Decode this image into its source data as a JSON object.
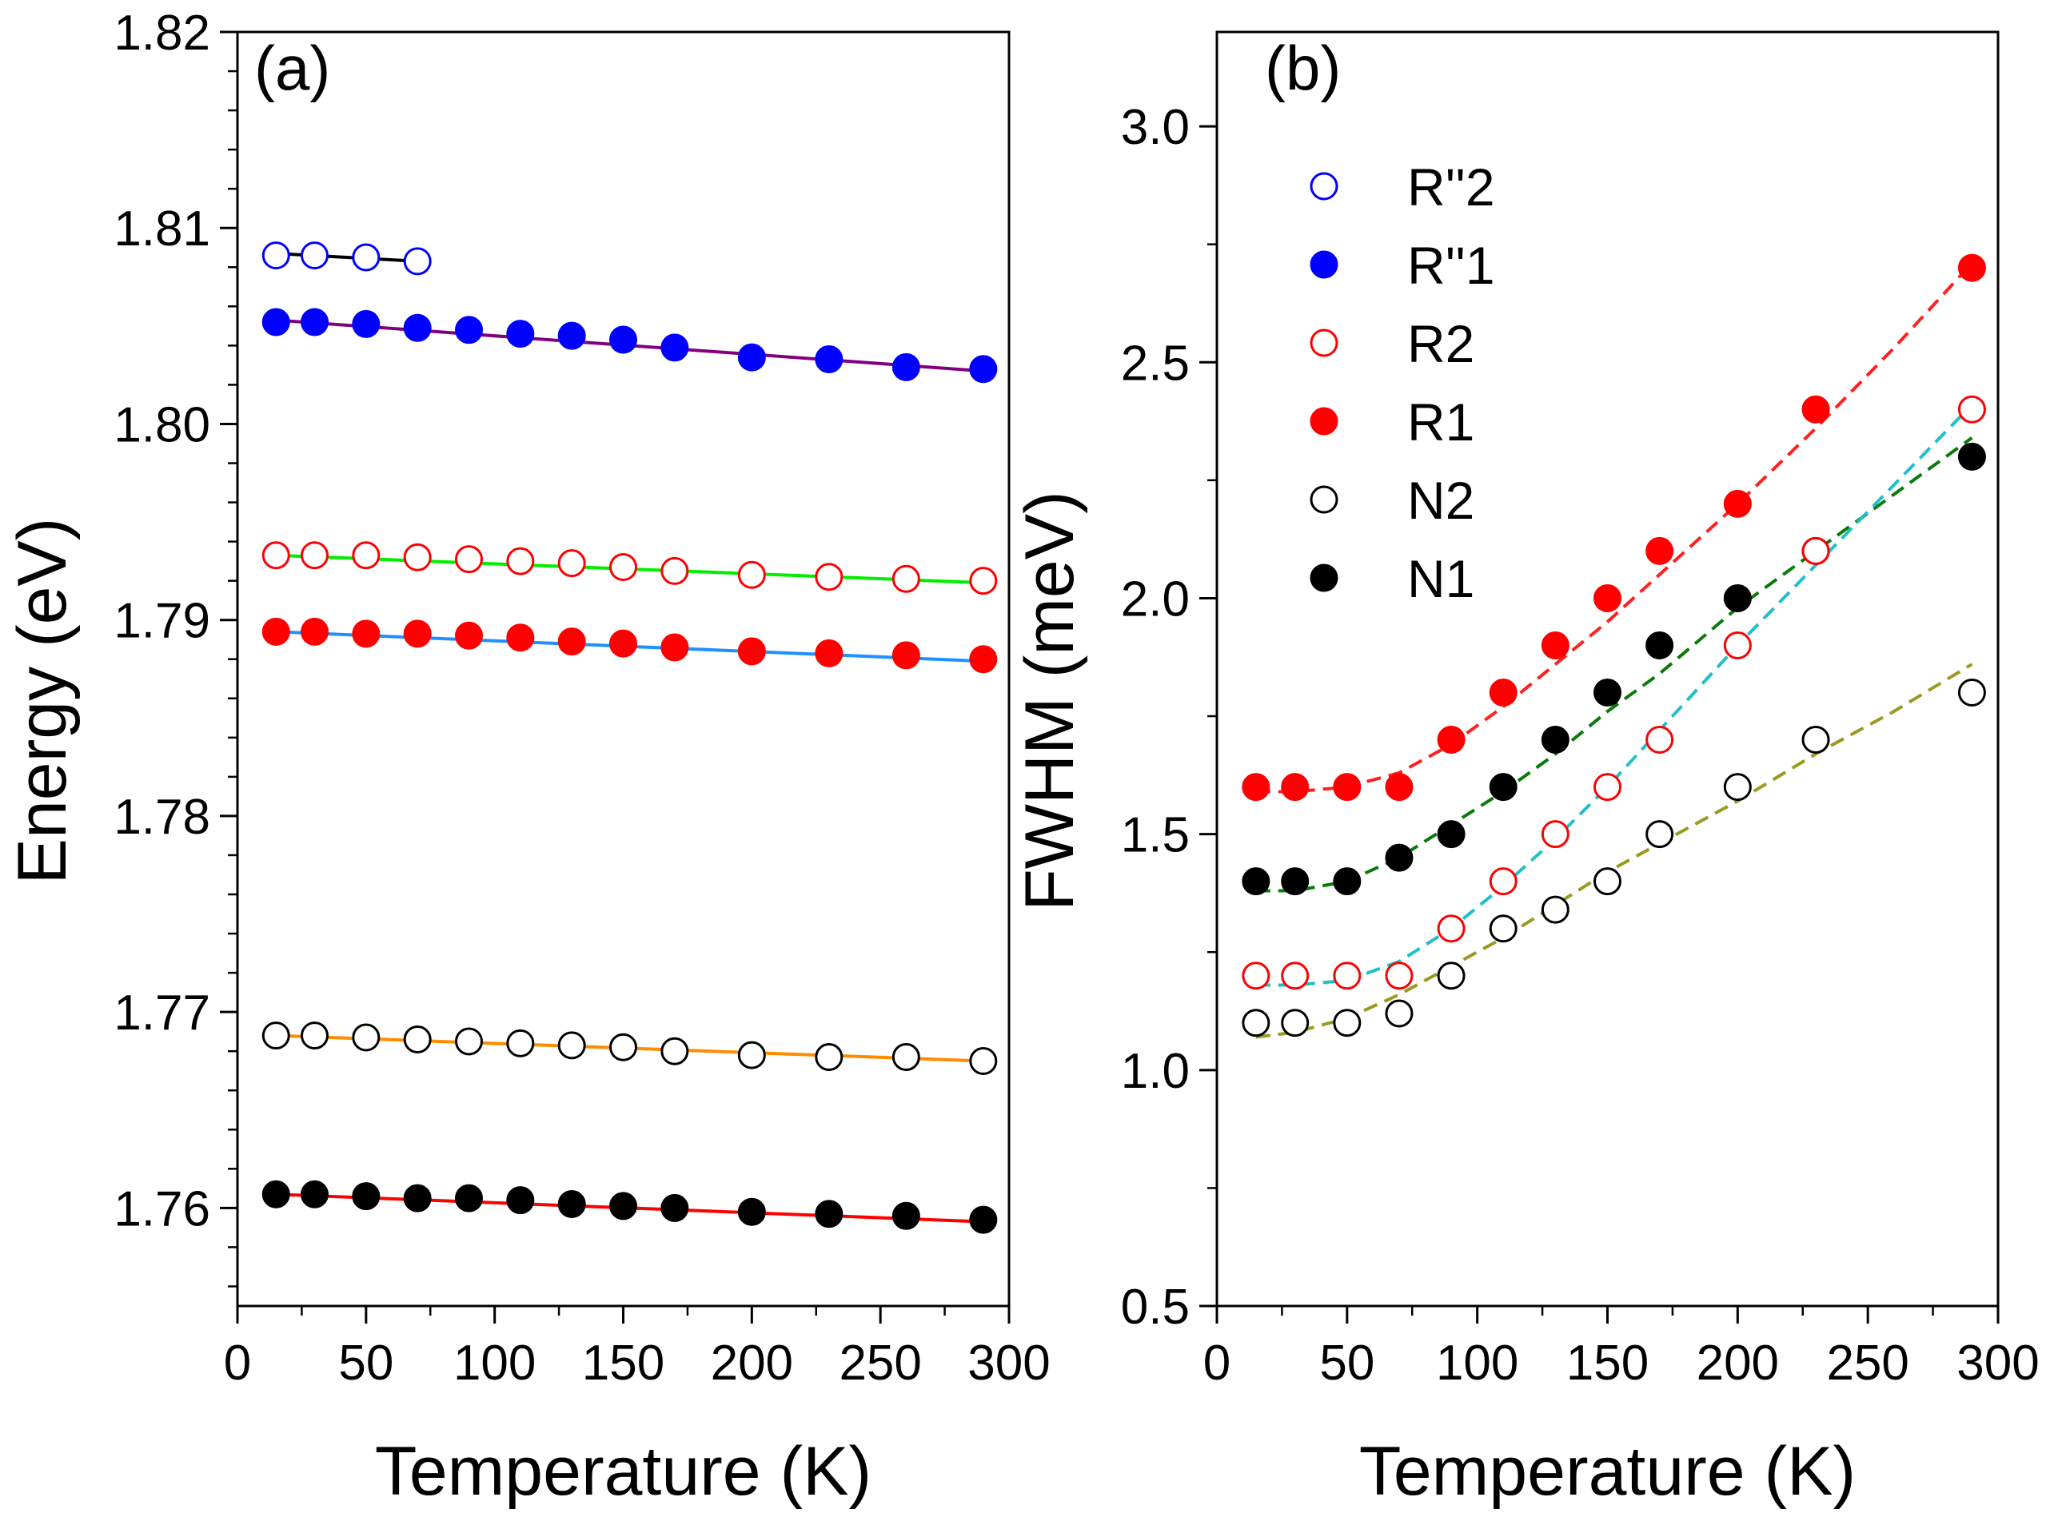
{
  "chart_data": [
    {
      "type": "scatter",
      "panel_label": "(a)",
      "xlabel": "Temperature (K)",
      "ylabel": "Energy (eV)",
      "xlim": [
        0,
        300
      ],
      "ylim": [
        1.755,
        1.82
      ],
      "x_ticks": [
        "0",
        "50",
        "100",
        "150",
        "200",
        "250",
        "300"
      ],
      "y_ticks": [
        "1.76",
        "1.77",
        "1.78",
        "1.79",
        "1.80",
        "1.81",
        "1.82"
      ],
      "series": [
        {
          "name": "R''2",
          "filled": false,
          "color": "#0000ff",
          "fit_color": "#000000",
          "x": [
            15,
            30,
            50,
            70
          ],
          "y": [
            1.8086,
            1.8086,
            1.8085,
            1.8083
          ],
          "fit_x": [
            15,
            70
          ],
          "fit_y": [
            1.8087,
            1.8083
          ]
        },
        {
          "name": "R''1",
          "filled": true,
          "color": "#0000ff",
          "fit_color": "#800080",
          "x": [
            15,
            30,
            50,
            70,
            90,
            110,
            130,
            150,
            170,
            200,
            230,
            260,
            290
          ],
          "y": [
            1.8052,
            1.8052,
            1.8051,
            1.8049,
            1.8048,
            1.8046,
            1.8045,
            1.8043,
            1.8039,
            1.8034,
            1.8033,
            1.8029,
            1.8028
          ],
          "fit_x": [
            15,
            290
          ],
          "fit_y": [
            1.8053,
            1.8027
          ]
        },
        {
          "name": "R2",
          "filled": false,
          "color": "#ff0000",
          "fit_color": "#00ee00",
          "x": [
            15,
            30,
            50,
            70,
            90,
            110,
            130,
            150,
            170,
            200,
            230,
            260,
            290
          ],
          "y": [
            1.7933,
            1.7933,
            1.7933,
            1.7932,
            1.7931,
            1.793,
            1.7929,
            1.7927,
            1.7925,
            1.7923,
            1.7922,
            1.7921,
            1.792
          ],
          "fit_x": [
            15,
            290
          ],
          "fit_y": [
            1.7933,
            1.7919
          ]
        },
        {
          "name": "R1",
          "filled": true,
          "color": "#ff0000",
          "fit_color": "#1e90ff",
          "x": [
            15,
            30,
            50,
            70,
            90,
            110,
            130,
            150,
            170,
            200,
            230,
            260,
            290
          ],
          "y": [
            1.7894,
            1.7894,
            1.7893,
            1.7893,
            1.7892,
            1.7891,
            1.7889,
            1.7888,
            1.7886,
            1.7884,
            1.7883,
            1.7882,
            1.788
          ],
          "fit_x": [
            15,
            290
          ],
          "fit_y": [
            1.7894,
            1.7879
          ]
        },
        {
          "name": "N2",
          "filled": false,
          "color": "#000000",
          "fit_color": "#ff8c00",
          "x": [
            15,
            30,
            50,
            70,
            90,
            110,
            130,
            150,
            170,
            200,
            230,
            260,
            290
          ],
          "y": [
            1.7688,
            1.7688,
            1.7687,
            1.7686,
            1.7685,
            1.7684,
            1.7683,
            1.7682,
            1.768,
            1.7678,
            1.7677,
            1.7677,
            1.7675
          ],
          "fit_x": [
            15,
            290
          ],
          "fit_y": [
            1.7688,
            1.7675
          ]
        },
        {
          "name": "N1",
          "filled": true,
          "color": "#000000",
          "fit_color": "#ff0000",
          "x": [
            15,
            30,
            50,
            70,
            90,
            110,
            130,
            150,
            170,
            200,
            230,
            260,
            290
          ],
          "y": [
            1.7607,
            1.7607,
            1.7606,
            1.7605,
            1.7605,
            1.7604,
            1.7602,
            1.7601,
            1.76,
            1.7598,
            1.7597,
            1.7596,
            1.7594
          ],
          "fit_x": [
            15,
            290
          ],
          "fit_y": [
            1.7607,
            1.7593
          ]
        }
      ]
    },
    {
      "type": "scatter",
      "panel_label": "(b)",
      "xlabel": "Temperature (K)",
      "ylabel": "FWHM (meV)",
      "xlim": [
        0,
        300
      ],
      "ylim": [
        0.5,
        3.2
      ],
      "x_ticks": [
        "0",
        "50",
        "100",
        "150",
        "200",
        "250",
        "300"
      ],
      "y_ticks": [
        "0.5",
        "1.0",
        "1.5",
        "2.0",
        "2.5",
        "3.0"
      ],
      "legend_position": "top-left",
      "legend": [
        {
          "label": "R''2",
          "filled": false,
          "color": "#0000ff"
        },
        {
          "label": "R''1",
          "filled": true,
          "color": "#0000ff"
        },
        {
          "label": "R2",
          "filled": false,
          "color": "#ff0000"
        },
        {
          "label": "R1",
          "filled": true,
          "color": "#ff0000"
        },
        {
          "label": "N2",
          "filled": false,
          "color": "#000000"
        },
        {
          "label": "N1",
          "filled": true,
          "color": "#000000"
        }
      ],
      "series": [
        {
          "name": "R1",
          "filled": true,
          "color": "#ff0000",
          "fit_color": "#ff2020",
          "x": [
            15,
            30,
            50,
            70,
            90,
            110,
            130,
            150,
            170,
            200,
            230,
            290
          ],
          "y": [
            1.6,
            1.6,
            1.6,
            1.6,
            1.7,
            1.8,
            1.9,
            2.0,
            2.1,
            2.2,
            2.4,
            2.7
          ],
          "fit_x": [
            15,
            30,
            50,
            70,
            90,
            110,
            130,
            150,
            170,
            200,
            230,
            260,
            290
          ],
          "fit_y": [
            1.59,
            1.59,
            1.6,
            1.63,
            1.69,
            1.77,
            1.86,
            1.95,
            2.05,
            2.2,
            2.36,
            2.53,
            2.71
          ]
        },
        {
          "name": "N1",
          "filled": true,
          "color": "#000000",
          "fit_color": "#0a7a0a",
          "x": [
            15,
            30,
            50,
            70,
            90,
            110,
            130,
            150,
            170,
            200,
            230,
            290
          ],
          "y": [
            1.4,
            1.4,
            1.4,
            1.45,
            1.5,
            1.6,
            1.7,
            1.8,
            1.9,
            2.0,
            2.1,
            2.3
          ],
          "fit_x": [
            15,
            30,
            50,
            70,
            90,
            110,
            130,
            150,
            170,
            200,
            230,
            260,
            290
          ],
          "fit_y": [
            1.38,
            1.38,
            1.4,
            1.45,
            1.52,
            1.59,
            1.67,
            1.76,
            1.84,
            1.98,
            2.1,
            2.22,
            2.34
          ]
        },
        {
          "name": "R2",
          "filled": false,
          "color": "#ff0000",
          "fit_color": "#20c0c8",
          "x": [
            15,
            30,
            50,
            70,
            90,
            110,
            130,
            150,
            170,
            200,
            230,
            290
          ],
          "y": [
            1.2,
            1.2,
            1.2,
            1.2,
            1.3,
            1.4,
            1.5,
            1.6,
            1.7,
            1.9,
            2.1,
            2.4
          ],
          "fit_x": [
            15,
            30,
            50,
            70,
            90,
            110,
            130,
            150,
            170,
            200,
            230,
            260,
            290
          ],
          "fit_y": [
            1.18,
            1.18,
            1.19,
            1.23,
            1.3,
            1.39,
            1.49,
            1.6,
            1.72,
            1.9,
            2.07,
            2.24,
            2.41
          ]
        },
        {
          "name": "N2",
          "filled": false,
          "color": "#000000",
          "fit_color": "#9a9a20",
          "x": [
            15,
            30,
            50,
            70,
            90,
            110,
            130,
            150,
            170,
            200,
            230,
            290
          ],
          "y": [
            1.1,
            1.1,
            1.1,
            1.12,
            1.2,
            1.3,
            1.34,
            1.4,
            1.5,
            1.6,
            1.7,
            1.8
          ],
          "fit_x": [
            15,
            30,
            50,
            70,
            90,
            110,
            130,
            150,
            170,
            200,
            230,
            260,
            290
          ],
          "fit_y": [
            1.07,
            1.08,
            1.11,
            1.16,
            1.22,
            1.28,
            1.35,
            1.42,
            1.48,
            1.57,
            1.67,
            1.76,
            1.86
          ]
        }
      ]
    }
  ]
}
